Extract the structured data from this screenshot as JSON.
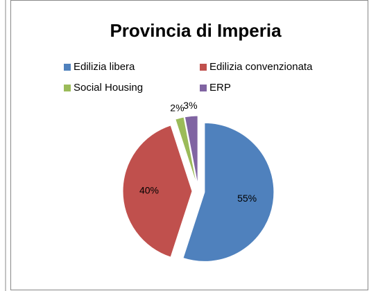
{
  "chart_data": {
    "type": "pie",
    "title": "Provincia di Imperia",
    "categories": [
      "Edilizia libera",
      "Edilizia convenzionata",
      "Social Housing",
      "ERP"
    ],
    "values": [
      55,
      40,
      2,
      3
    ],
    "value_labels": [
      "55%",
      "40%",
      "2%",
      "3%"
    ],
    "colors": [
      "#4f81bd",
      "#c0504d",
      "#9bbb59",
      "#8064a2"
    ],
    "legend": "top"
  }
}
